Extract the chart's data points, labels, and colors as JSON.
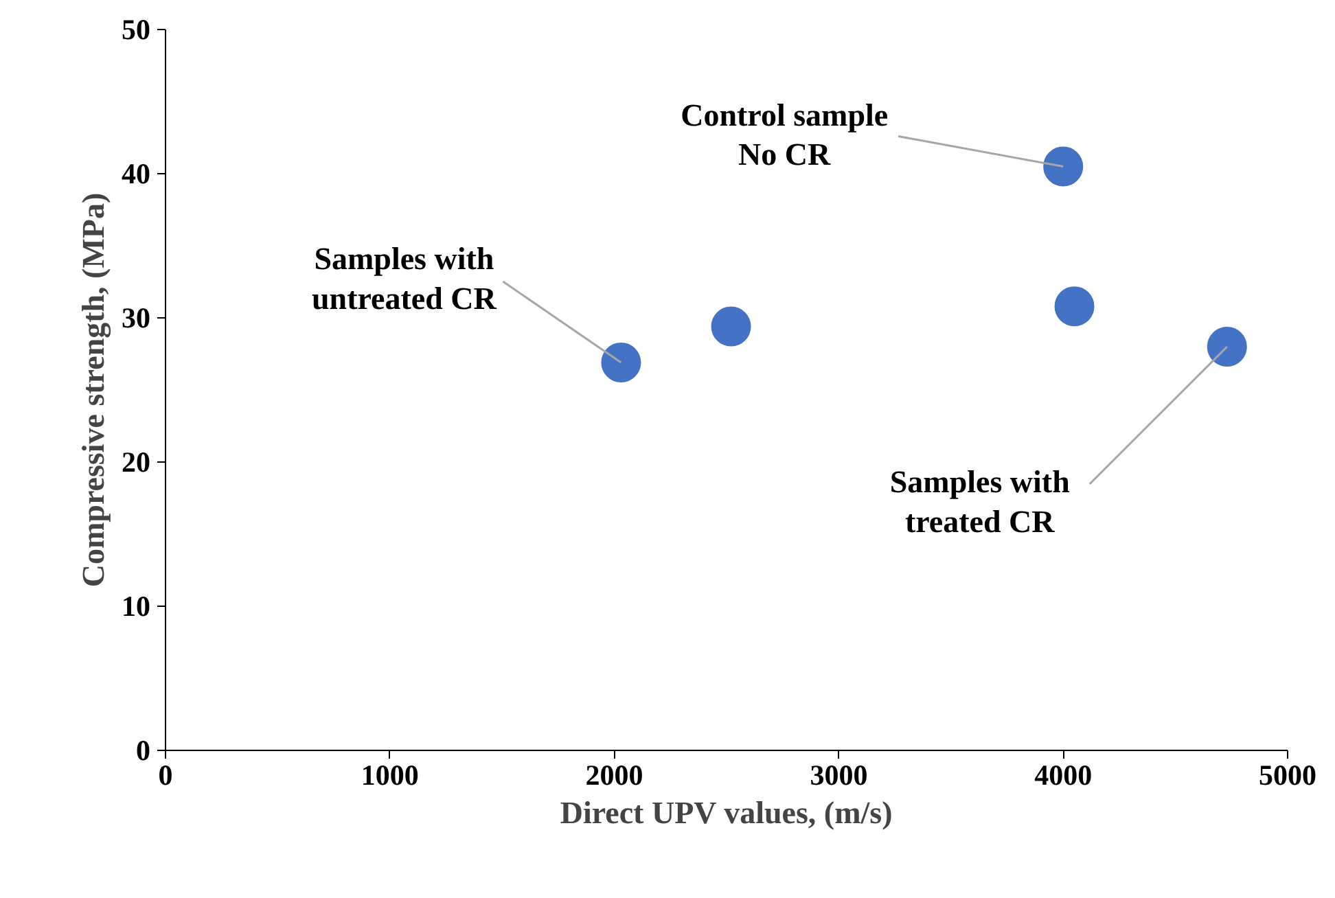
{
  "chart_data": {
    "type": "scatter",
    "xlabel": "Direct UPV values, (m/s)",
    "ylabel": "Compressive strength, (MPa)",
    "x": [
      2030,
      2520,
      4000,
      4050,
      4730
    ],
    "values": [
      26.9,
      29.4,
      40.5,
      30.8,
      28.0
    ],
    "color": "#4472c4",
    "marker": "circle",
    "xlim": [
      0,
      5000
    ],
    "ylim": [
      0,
      50
    ],
    "xticks": [
      0,
      1000,
      2000,
      3000,
      4000,
      5000
    ],
    "yticks": [
      0,
      10,
      20,
      30,
      40,
      50
    ],
    "annotations": [
      {
        "text": "Control sample\nNo CR",
        "x": 4000,
        "y": 40.5
      },
      {
        "text": "Samples with\nuntreated CR",
        "x": 2030,
        "y": 26.9
      },
      {
        "text": "Samples with\ntreated CR",
        "x": 4730,
        "y": 28.0
      }
    ]
  }
}
